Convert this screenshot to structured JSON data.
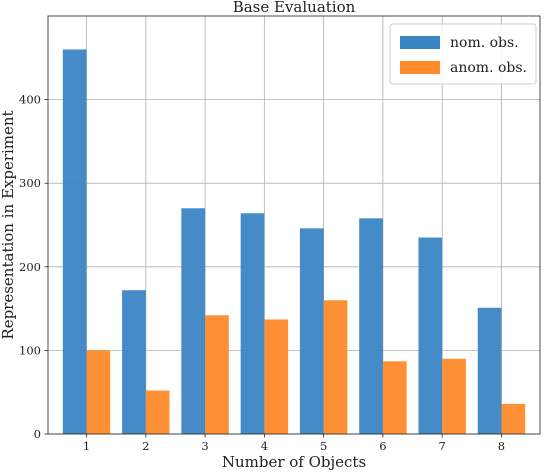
{
  "chart_data": {
    "type": "bar",
    "title": "Base Evaluation",
    "xlabel": "Number of Objects",
    "ylabel": "Representation in Experiment",
    "categories": [
      "1",
      "2",
      "3",
      "4",
      "5",
      "6",
      "7",
      "8"
    ],
    "series": [
      {
        "name": "nom. obs.",
        "color": "#3a85c4",
        "values": [
          460,
          172,
          270,
          264,
          246,
          258,
          235,
          151
        ]
      },
      {
        "name": "anom. obs.",
        "color": "#ff8a2a",
        "values": [
          100,
          52,
          142,
          137,
          160,
          87,
          90,
          36
        ]
      }
    ],
    "ylim": [
      0,
      500
    ],
    "yticks": [
      0,
      100,
      200,
      300,
      400
    ],
    "grid": true,
    "legend": "top-right"
  }
}
